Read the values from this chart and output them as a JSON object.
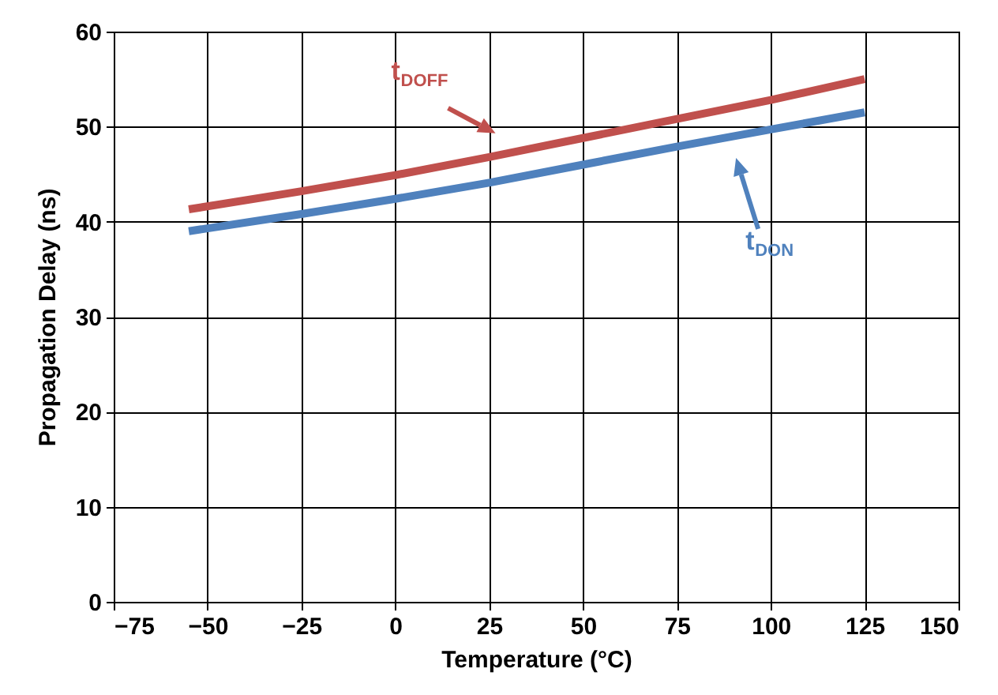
{
  "chart_data": {
    "type": "line",
    "xlabel": "Temperature (°C)",
    "ylabel": "Propagation Delay (ns)",
    "x": [
      -55,
      -25,
      0,
      25,
      50,
      75,
      100,
      125
    ],
    "series": [
      {
        "color": "#c0504d",
        "values": [
          41.3,
          43.2,
          44.9,
          46.8,
          48.8,
          50.8,
          52.8,
          55.0
        ]
      },
      {
        "color": "#4f81bd",
        "values": [
          39.0,
          40.8,
          42.4,
          44.1,
          46.0,
          47.9,
          49.7,
          51.5
        ]
      }
    ],
    "annotations": [
      "t$_{DOFF}$",
      "t$_{DON}$"
    ],
    "xlim": [
      -75,
      150
    ],
    "xticks": [
      -75,
      -50,
      -25,
      0,
      25,
      50,
      75,
      100,
      125,
      150
    ],
    "ylim": [
      0,
      60
    ],
    "yticks": [
      0,
      10,
      20,
      30,
      40,
      50,
      60
    ],
    "grid": true,
    "marker": "none",
    "line_style": "solid"
  }
}
